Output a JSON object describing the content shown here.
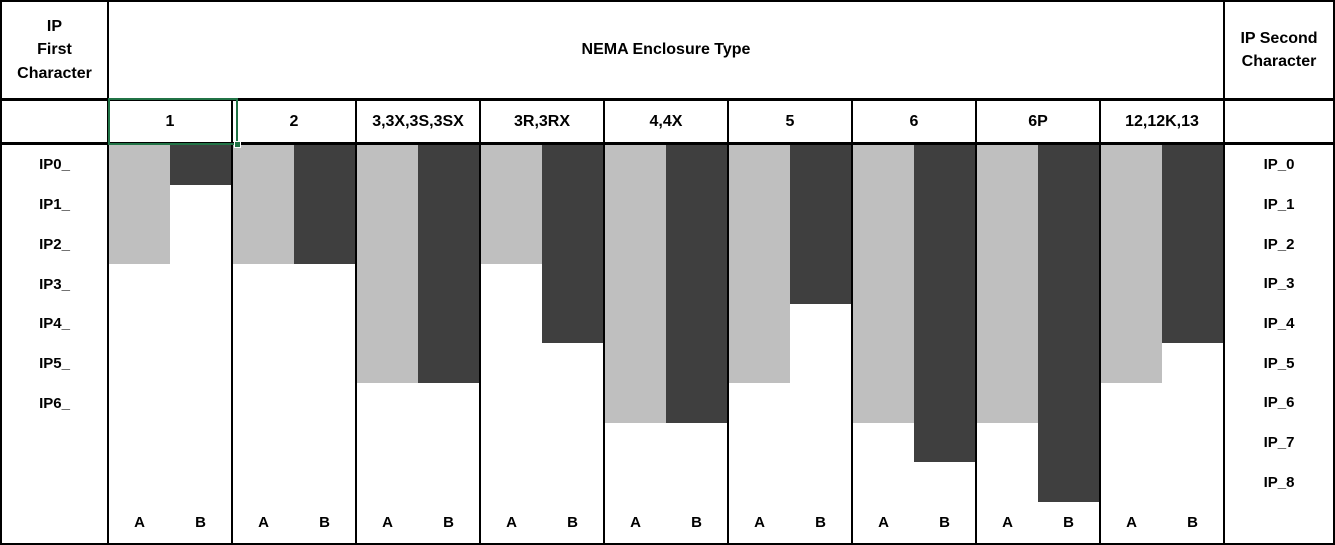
{
  "header": {
    "title": "NEMA Enclosure Type",
    "ip_first": "IP\nFirst\nCharacter",
    "ip_second": "IP Second\nCharacter"
  },
  "selection": {
    "selected_column_header": "1",
    "border_color": "#217346"
  },
  "colors": {
    "bar_a": "#BFBFBF",
    "bar_b": "#3F3F3F",
    "grid": "#000000",
    "background": "#FFFFFF"
  },
  "chart_data": {
    "type": "bar",
    "title": "NEMA Enclosure Type",
    "orientation": "vertical-descending-from-top",
    "categories": [
      "1",
      "2",
      "3,3X,3S,3SX",
      "3R,3RX",
      "4,4X",
      "5",
      "6",
      "6P",
      "12,12K,13"
    ],
    "series": [
      {
        "name": "A",
        "axis": "IP First Character",
        "values": [
          2,
          2,
          5,
          2,
          6,
          5,
          6,
          6,
          5
        ]
      },
      {
        "name": "B",
        "axis": "IP Second Character",
        "values": [
          0,
          2,
          5,
          4,
          6,
          3,
          7,
          8,
          4
        ]
      }
    ],
    "sub_labels": [
      "A",
      "B"
    ],
    "grid_rows": 9,
    "left_axis": {
      "title": "IP First Character",
      "labels": [
        "IP0_",
        "IP1_",
        "IP2_",
        "IP3_",
        "IP4_",
        "IP5_",
        "IP6_"
      ]
    },
    "right_axis": {
      "title": "IP Second Character",
      "labels": [
        "IP_0",
        "IP_1",
        "IP_2",
        "IP_3",
        "IP_4",
        "IP_5",
        "IP_6",
        "IP_7",
        "IP_8"
      ]
    },
    "legend_position": "none",
    "gridlines": "column separators only"
  }
}
